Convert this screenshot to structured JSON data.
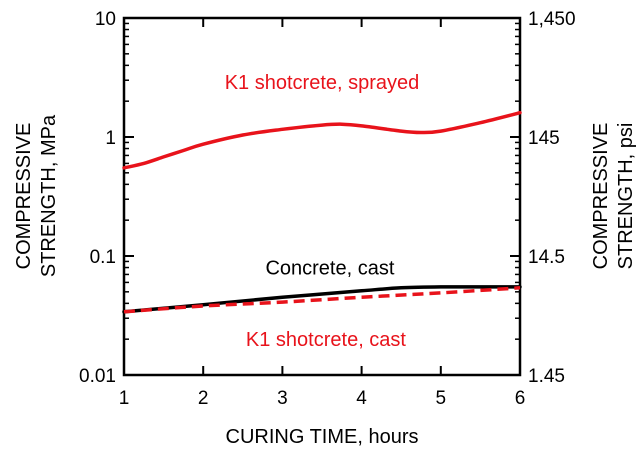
{
  "chart_data": {
    "type": "line",
    "xlabel": "CURING TIME, hours",
    "ylabel_left": [
      "COMPRESSIVE",
      "STRENGTH, MPa"
    ],
    "ylabel_right": [
      "COMPRESSIVE",
      "STRENGTH, psi"
    ],
    "xlim": [
      1,
      6
    ],
    "ylim": [
      0.01,
      10
    ],
    "y_scale": "log",
    "x_ticks": [
      1,
      2,
      3,
      4,
      5,
      6
    ],
    "x_tick_labels": [
      "1",
      "2",
      "3",
      "4",
      "5",
      "6"
    ],
    "y_ticks_left": [
      0.01,
      0.1,
      1,
      10
    ],
    "y_tick_labels_left": [
      "0.01",
      "0.1",
      "1",
      "10"
    ],
    "y_ticks_right_values": [
      0.01,
      0.1,
      1,
      10
    ],
    "y_tick_labels_right": [
      "1.45",
      "14.5",
      "145",
      "1,450"
    ],
    "grid": false,
    "series": [
      {
        "name": "K1 shotcrete, sprayed",
        "color": "#e8131b",
        "style": "solid",
        "x": [
          1.0,
          1.25,
          1.5,
          1.75,
          2.0,
          2.5,
          3.0,
          3.5,
          3.75,
          4.0,
          4.5,
          4.75,
          5.0,
          5.5,
          6.0
        ],
        "y": [
          0.55,
          0.6,
          0.68,
          0.77,
          0.87,
          1.04,
          1.16,
          1.26,
          1.28,
          1.24,
          1.12,
          1.09,
          1.12,
          1.32,
          1.6
        ]
      },
      {
        "name": "Concrete, cast",
        "color": "#000000",
        "style": "solid",
        "x": [
          1.0,
          2.0,
          3.0,
          4.0,
          4.5,
          5.0,
          6.0
        ],
        "y": [
          0.034,
          0.039,
          0.045,
          0.051,
          0.054,
          0.055,
          0.055
        ]
      },
      {
        "name": "K1 shotcrete, cast",
        "color": "#e8131b",
        "style": "dashed",
        "x": [
          1.0,
          2.0,
          3.0,
          4.0,
          5.0,
          6.0
        ],
        "y": [
          0.034,
          0.038,
          0.041,
          0.045,
          0.049,
          0.054
        ]
      }
    ],
    "series_labels": [
      {
        "text": "K1 shotcrete, sprayed",
        "color": "#e8131b",
        "x": 3.5,
        "y": 2.9
      },
      {
        "text": "Concrete, cast",
        "color": "#000000",
        "x": 3.6,
        "y": 0.08
      },
      {
        "text": "K1 shotcrete, cast",
        "color": "#e8131b",
        "x": 3.55,
        "y": 0.02
      }
    ]
  }
}
